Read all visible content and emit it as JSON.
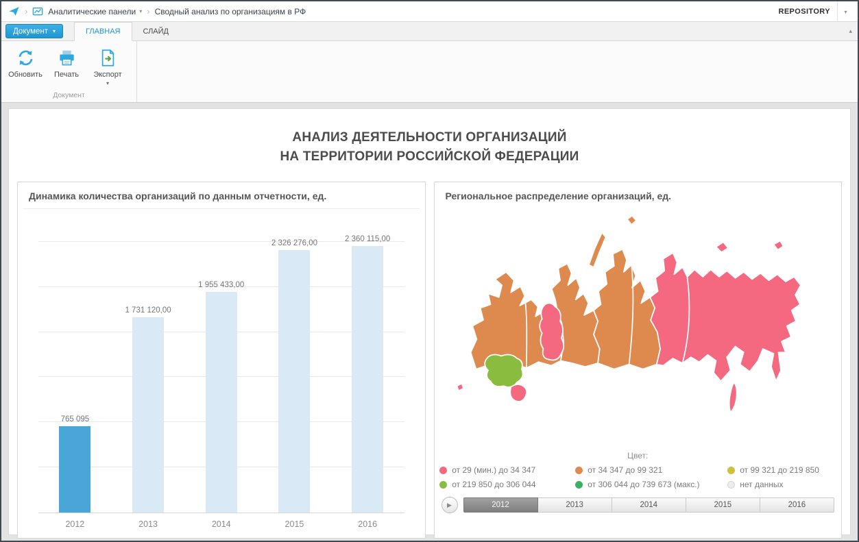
{
  "glyphs": {
    "caret_down": "▾",
    "chevron": "›",
    "collapse": "▴",
    "play": "▶"
  },
  "topbar": {
    "breadcrumbs": [
      {
        "label": "Аналитические панели"
      },
      {
        "label": "Сводный анализ по организациям в РФ"
      }
    ],
    "repository_label": "REPOSITORY"
  },
  "ribbon": {
    "document_menu_label": "Документ",
    "tabs": [
      {
        "label": "ГЛАВНАЯ",
        "active": true
      },
      {
        "label": "СЛАЙД",
        "active": false
      }
    ],
    "tools": [
      {
        "label": "Обновить",
        "icon": "refresh-icon"
      },
      {
        "label": "Печать",
        "icon": "printer-icon"
      },
      {
        "label": "Экспорт",
        "icon": "export-icon",
        "has_caret": true
      }
    ],
    "group_label": "Документ"
  },
  "report": {
    "title_line1": "АНАЛИЗ ДЕЯТЕЛЬНОСТИ ОРГАНИЗАЦИЙ",
    "title_line2": "НА ТЕРРИТОРИИ РОССИЙСКОЙ ФЕДЕРАЦИИ"
  },
  "chart_data": {
    "type": "bar",
    "title": "Динамика количества организаций по данным отчетности, ед.",
    "categories": [
      "2012",
      "2013",
      "2014",
      "2015",
      "2016"
    ],
    "values": [
      765095,
      1731120,
      1955433,
      2326276,
      2360115
    ],
    "value_labels": [
      "765 095",
      "1 731 120,00",
      "1 955 433,00",
      "2 326 276,00",
      "2 360 115,00"
    ],
    "ylim": [
      0,
      2600000
    ],
    "grid": true,
    "highlight_index": 0,
    "colors": {
      "highlight": "#4BA6D8",
      "normal": "#D9EAF6",
      "gridline": "#E9E9E9"
    }
  },
  "map_panel": {
    "title": "Региональное распределение организаций, ед.",
    "legend_title": "Цвет:",
    "legend": [
      {
        "label": "от 29 (мин.) до 34 347",
        "color": "#F4697F"
      },
      {
        "label": "от 34 347 до 99 321",
        "color": "#DE8A4E"
      },
      {
        "label": "от 99 321 до 219 850",
        "color": "#CFC23B"
      },
      {
        "label": "от 219 850 до 306 044",
        "color": "#8ABD3F"
      },
      {
        "label": "от 306 044 до 739 673 (макс.)",
        "color": "#37B163"
      },
      {
        "label": "нет данных",
        "color": "#EDEDED"
      }
    ],
    "timeline": {
      "years": [
        "2012",
        "2013",
        "2014",
        "2015",
        "2016"
      ],
      "selected_year": "2012"
    }
  }
}
